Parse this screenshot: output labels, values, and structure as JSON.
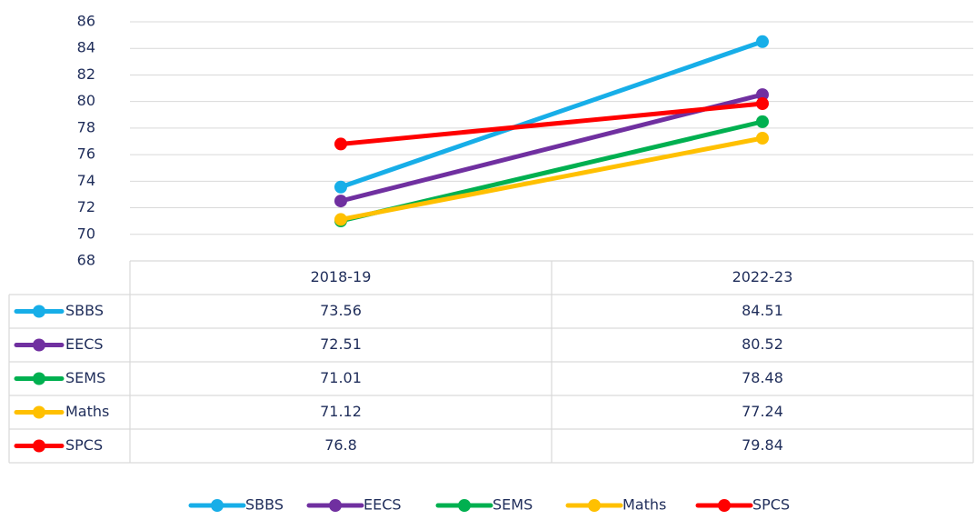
{
  "chart_data": {
    "type": "line",
    "categories": [
      "2018-19",
      "2022-23"
    ],
    "series": [
      {
        "name": "SBBS",
        "color": "#17aee8",
        "values": [
          73.56,
          84.51
        ]
      },
      {
        "name": "EECS",
        "color": "#7030a0",
        "values": [
          72.51,
          80.52
        ]
      },
      {
        "name": "SEMS",
        "color": "#00b050",
        "values": [
          71.01,
          78.48
        ]
      },
      {
        "name": "Maths",
        "color": "#ffc000",
        "values": [
          71.12,
          77.24
        ]
      },
      {
        "name": "SPCS",
        "color": "#ff0000",
        "values": [
          76.8,
          79.84
        ]
      }
    ],
    "ylim": [
      68,
      86
    ],
    "yticks": [
      68,
      70,
      72,
      74,
      76,
      78,
      80,
      82,
      84,
      86
    ],
    "grid": true,
    "legend": "bottom",
    "data_table": true
  }
}
